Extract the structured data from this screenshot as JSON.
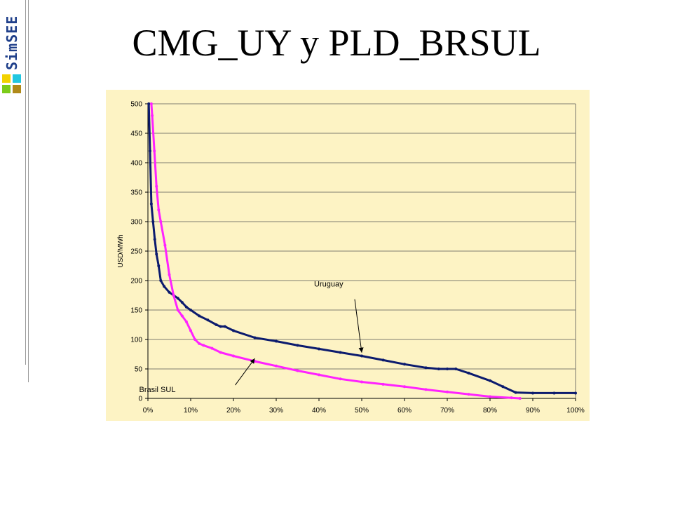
{
  "slide": {
    "brand_text": "SimSEE",
    "title": "CMG_UY y PLD_BRSUL"
  },
  "colors": {
    "plot_bg": "#fdf3c4",
    "uruguay": "#0c1b6e",
    "brasil": "#ff22ff",
    "grid": "#555555"
  },
  "chart_data": {
    "type": "line",
    "title": "",
    "xlabel": "",
    "ylabel": "USD/MWh",
    "xlim": [
      0,
      100
    ],
    "ylim": [
      0,
      500
    ],
    "x_ticks": [
      0,
      10,
      20,
      30,
      40,
      50,
      60,
      70,
      80,
      90,
      100
    ],
    "x_tick_labels": [
      "0%",
      "10%",
      "20%",
      "30%",
      "40%",
      "50%",
      "60%",
      "70%",
      "80%",
      "90%",
      "100%"
    ],
    "y_ticks": [
      0,
      50,
      100,
      150,
      200,
      250,
      300,
      350,
      400,
      450,
      500
    ],
    "y_tick_labels": [
      "0",
      "50",
      "100",
      "150",
      "200",
      "250",
      "300",
      "350",
      "400",
      "450",
      "500"
    ],
    "grid": "horizontal",
    "series": [
      {
        "name": "Uruguay",
        "x": [
          0.2,
          0.5,
          0.8,
          1.2,
          1.6,
          2.0,
          2.5,
          3.0,
          3.8,
          5.0,
          6.0,
          7.0,
          8.0,
          9.0,
          10.0,
          12.0,
          14.0,
          16.0,
          17.0,
          18.0,
          20.0,
          25.0,
          30.0,
          35.0,
          40.0,
          45.0,
          50.0,
          55.0,
          60.0,
          65.0,
          68.0,
          70.0,
          72.0,
          75.0,
          80.0,
          83.0,
          86.0,
          90.0,
          95.0,
          100.0
        ],
        "y": [
          500,
          420,
          330,
          300,
          270,
          245,
          225,
          200,
          190,
          180,
          175,
          170,
          163,
          155,
          150,
          140,
          133,
          125,
          122,
          122,
          115,
          103,
          97,
          90,
          84,
          78,
          72,
          65,
          58,
          52,
          50,
          50,
          50,
          43,
          30,
          20,
          10,
          9,
          9,
          9
        ]
      },
      {
        "name": "Brasil SUL",
        "x": [
          0.8,
          1.0,
          1.5,
          2.0,
          2.5,
          3.0,
          4.0,
          5.0,
          6.0,
          7.0,
          8.0,
          9.0,
          10.0,
          11.0,
          12.0,
          13.0,
          15.0,
          17.0,
          20.0,
          25.0,
          30.0,
          35.0,
          40.0,
          45.0,
          50.0,
          55.0,
          60.0,
          65.0,
          70.0,
          75.0,
          80.0,
          85.0,
          87.0
        ],
        "y": [
          500,
          480,
          420,
          360,
          320,
          300,
          260,
          210,
          175,
          150,
          140,
          130,
          115,
          100,
          93,
          90,
          85,
          78,
          72,
          63,
          55,
          47,
          40,
          33,
          28,
          24,
          20,
          15,
          11,
          7,
          3,
          1,
          0
        ]
      }
    ],
    "annotations": [
      {
        "text": "Uruguay",
        "series": "Uruguay",
        "point": [
          50,
          73
        ]
      },
      {
        "text": "Brasil SUL",
        "series": "Brasil SUL",
        "point": [
          25,
          63
        ]
      }
    ]
  }
}
